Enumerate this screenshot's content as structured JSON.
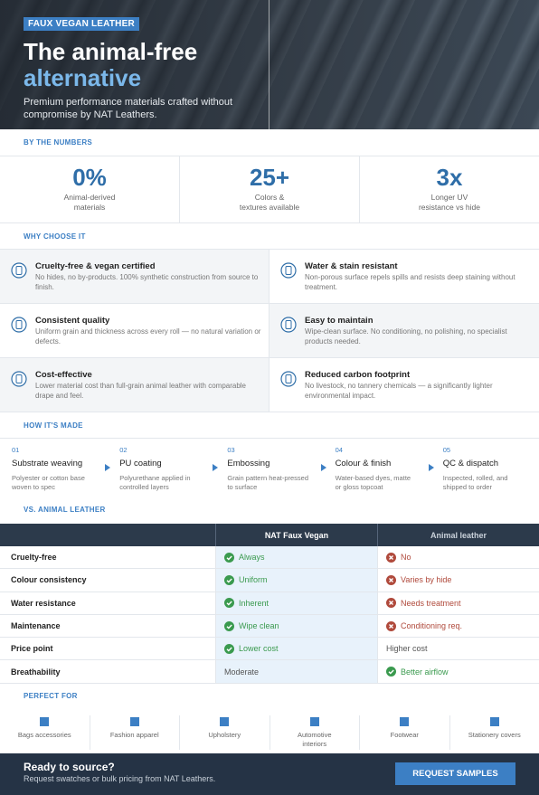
{
  "hero": {
    "badge": "FAUX VEGAN LEATHER",
    "title_line1": "The animal-free",
    "title_line2": "alternative",
    "subtitle": "Premium performance materials crafted without compromise by NAT Leathers."
  },
  "numbers": {
    "heading": "BY THE NUMBERS",
    "stats": [
      {
        "value": "0%",
        "label": [
          "Animal-derived",
          "materials"
        ]
      },
      {
        "value": "25+",
        "label": [
          "Colors &",
          "textures available"
        ]
      },
      {
        "value": "3x",
        "label": [
          "Longer UV",
          "resistance vs hide"
        ]
      }
    ]
  },
  "why": {
    "heading": "WHY CHOOSE IT",
    "features": [
      {
        "title": "Cruelty-free & vegan certified",
        "desc": "No hides, no by-products. 100% synthetic construction from source to finish."
      },
      {
        "title": "Water & stain resistant",
        "desc": "Non-porous surface repels spills and resists deep staining without treatment."
      },
      {
        "title": "Consistent quality",
        "desc": "Uniform grain and thickness across every roll — no natural variation or defects."
      },
      {
        "title": "Easy to maintain",
        "desc": "Wipe-clean surface. No conditioning, no polishing, no specialist products needed."
      },
      {
        "title": "Cost-effective",
        "desc": "Lower material cost than full-grain animal leather with comparable drape and feel."
      },
      {
        "title": "Reduced carbon footprint",
        "desc": "No livestock, no tannery chemicals — a significantly lighter environmental impact."
      }
    ]
  },
  "process": {
    "heading": "HOW IT'S MADE",
    "steps": [
      {
        "number": "01",
        "title": "Substrate weaving",
        "desc": "Polyester or cotton base woven to spec"
      },
      {
        "number": "02",
        "title": "PU coating",
        "desc": "Polyurethane applied in controlled layers"
      },
      {
        "number": "03",
        "title": "Embossing",
        "desc": "Grain pattern heat-pressed to surface"
      },
      {
        "number": "04",
        "title": "Colour & finish",
        "desc": "Water-based dyes, matte or gloss topcoat"
      },
      {
        "number": "05",
        "title": "QC & dispatch",
        "desc": "Inspected, rolled, and shipped to order"
      }
    ]
  },
  "comparison": {
    "heading": "VS. ANIMAL LEATHER",
    "columns": [
      "NAT Faux Vegan",
      "Animal leather"
    ],
    "rows": [
      {
        "label": "Cruelty-free",
        "cells": [
          {
            "text": "Always",
            "icon": "check"
          },
          {
            "text": "No",
            "icon": "cross"
          }
        ]
      },
      {
        "label": "Colour consistency",
        "cells": [
          {
            "text": "Uniform",
            "icon": "check"
          },
          {
            "text": "Varies by hide",
            "icon": "cross"
          }
        ]
      },
      {
        "label": "Water resistance",
        "cells": [
          {
            "text": "Inherent",
            "icon": "check"
          },
          {
            "text": "Needs treatment",
            "icon": "cross"
          }
        ]
      },
      {
        "label": "Maintenance",
        "cells": [
          {
            "text": "Wipe clean",
            "icon": "check"
          },
          {
            "text": "Conditioning req.",
            "icon": "cross"
          }
        ]
      },
      {
        "label": "Price point",
        "cells": [
          {
            "text": "Lower cost",
            "icon": "check"
          },
          {
            "text": "Higher cost"
          }
        ]
      },
      {
        "label": "Breathability",
        "cells": [
          {
            "text": "Moderate"
          },
          {
            "text": "Better airflow",
            "icon": "check"
          }
        ]
      }
    ]
  },
  "uses": {
    "heading": "PERFECT FOR",
    "items": [
      "Bags accessories",
      "Fashion apparel",
      "Upholstery",
      "Automotive interiors",
      "Footwear",
      "Stationery covers"
    ]
  },
  "footer": {
    "title": "Ready to source?",
    "text": "Request swatches or bulk pricing from NAT Leathers.",
    "button": "REQUEST SAMPLES"
  }
}
